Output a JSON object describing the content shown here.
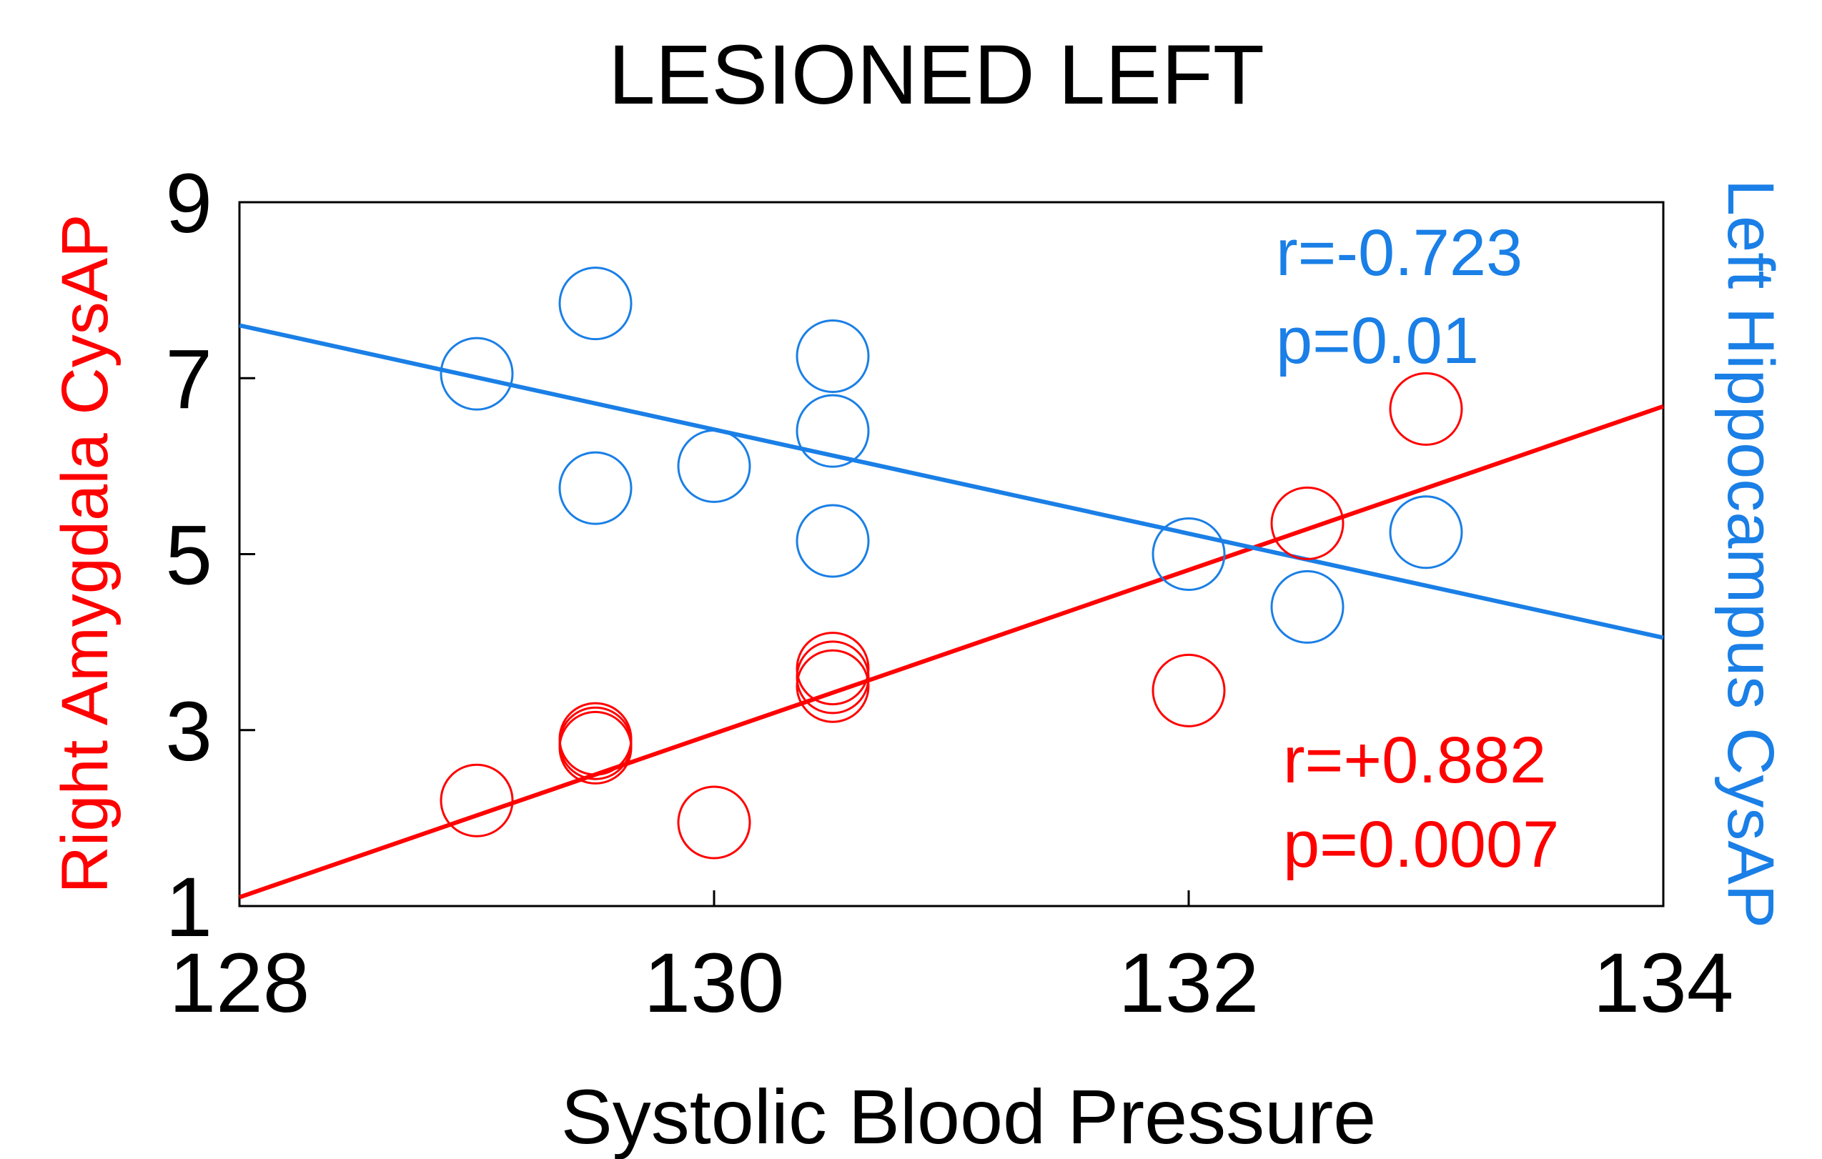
{
  "colors": {
    "red": "#ff0000",
    "blue": "#1a7fe6",
    "axis": "#000000",
    "background": "#ffffff"
  },
  "chart_data": {
    "type": "scatter",
    "title": "LESIONED LEFT",
    "xlabel": "Systolic Blood Pressure",
    "ylabel_left": "Right Amygdala CysAP",
    "ylabel_right": "Left Hippocampus CysAP",
    "xlim": [
      128,
      134
    ],
    "ylim": [
      1,
      9
    ],
    "xticks": [
      128,
      130,
      132,
      134
    ],
    "yticks": [
      1,
      3,
      5,
      7,
      9
    ],
    "x_tick_labels": [
      "128",
      "130",
      "132",
      "134"
    ],
    "y_tick_labels": [
      "1",
      "3",
      "5",
      "7",
      "9"
    ],
    "grid": false,
    "series": [
      {
        "name": "Right Amygdala CysAP",
        "color": "#ff0000",
        "marker": "open-circle",
        "points": [
          [
            129.0,
            2.2
          ],
          [
            129.5,
            2.85
          ],
          [
            129.5,
            2.8
          ],
          [
            129.5,
            2.9
          ],
          [
            130.0,
            1.95
          ],
          [
            130.5,
            3.5
          ],
          [
            130.5,
            3.6
          ],
          [
            130.5,
            3.7
          ],
          [
            132.0,
            3.45
          ],
          [
            132.5,
            5.35
          ],
          [
            133.0,
            6.65
          ]
        ],
        "fit": [
          [
            128,
            1.1
          ],
          [
            134,
            6.68
          ]
        ],
        "annotation": {
          "r": "r=+0.882",
          "p": "p=0.0007"
        }
      },
      {
        "name": "Left Hippocampus CysAP",
        "color": "#1a7fe6",
        "marker": "open-circle",
        "points": [
          [
            129.0,
            7.05
          ],
          [
            129.5,
            7.85
          ],
          [
            129.5,
            5.75
          ],
          [
            130.0,
            6.0
          ],
          [
            130.5,
            7.25
          ],
          [
            130.5,
            6.4
          ],
          [
            130.5,
            5.15
          ],
          [
            132.0,
            5.0
          ],
          [
            132.5,
            4.4
          ],
          [
            133.0,
            5.25
          ]
        ],
        "fit": [
          [
            128,
            7.6
          ],
          [
            134,
            4.05
          ]
        ],
        "annotation": {
          "r": "r=-0.723",
          "p": "p=0.01"
        }
      }
    ]
  }
}
